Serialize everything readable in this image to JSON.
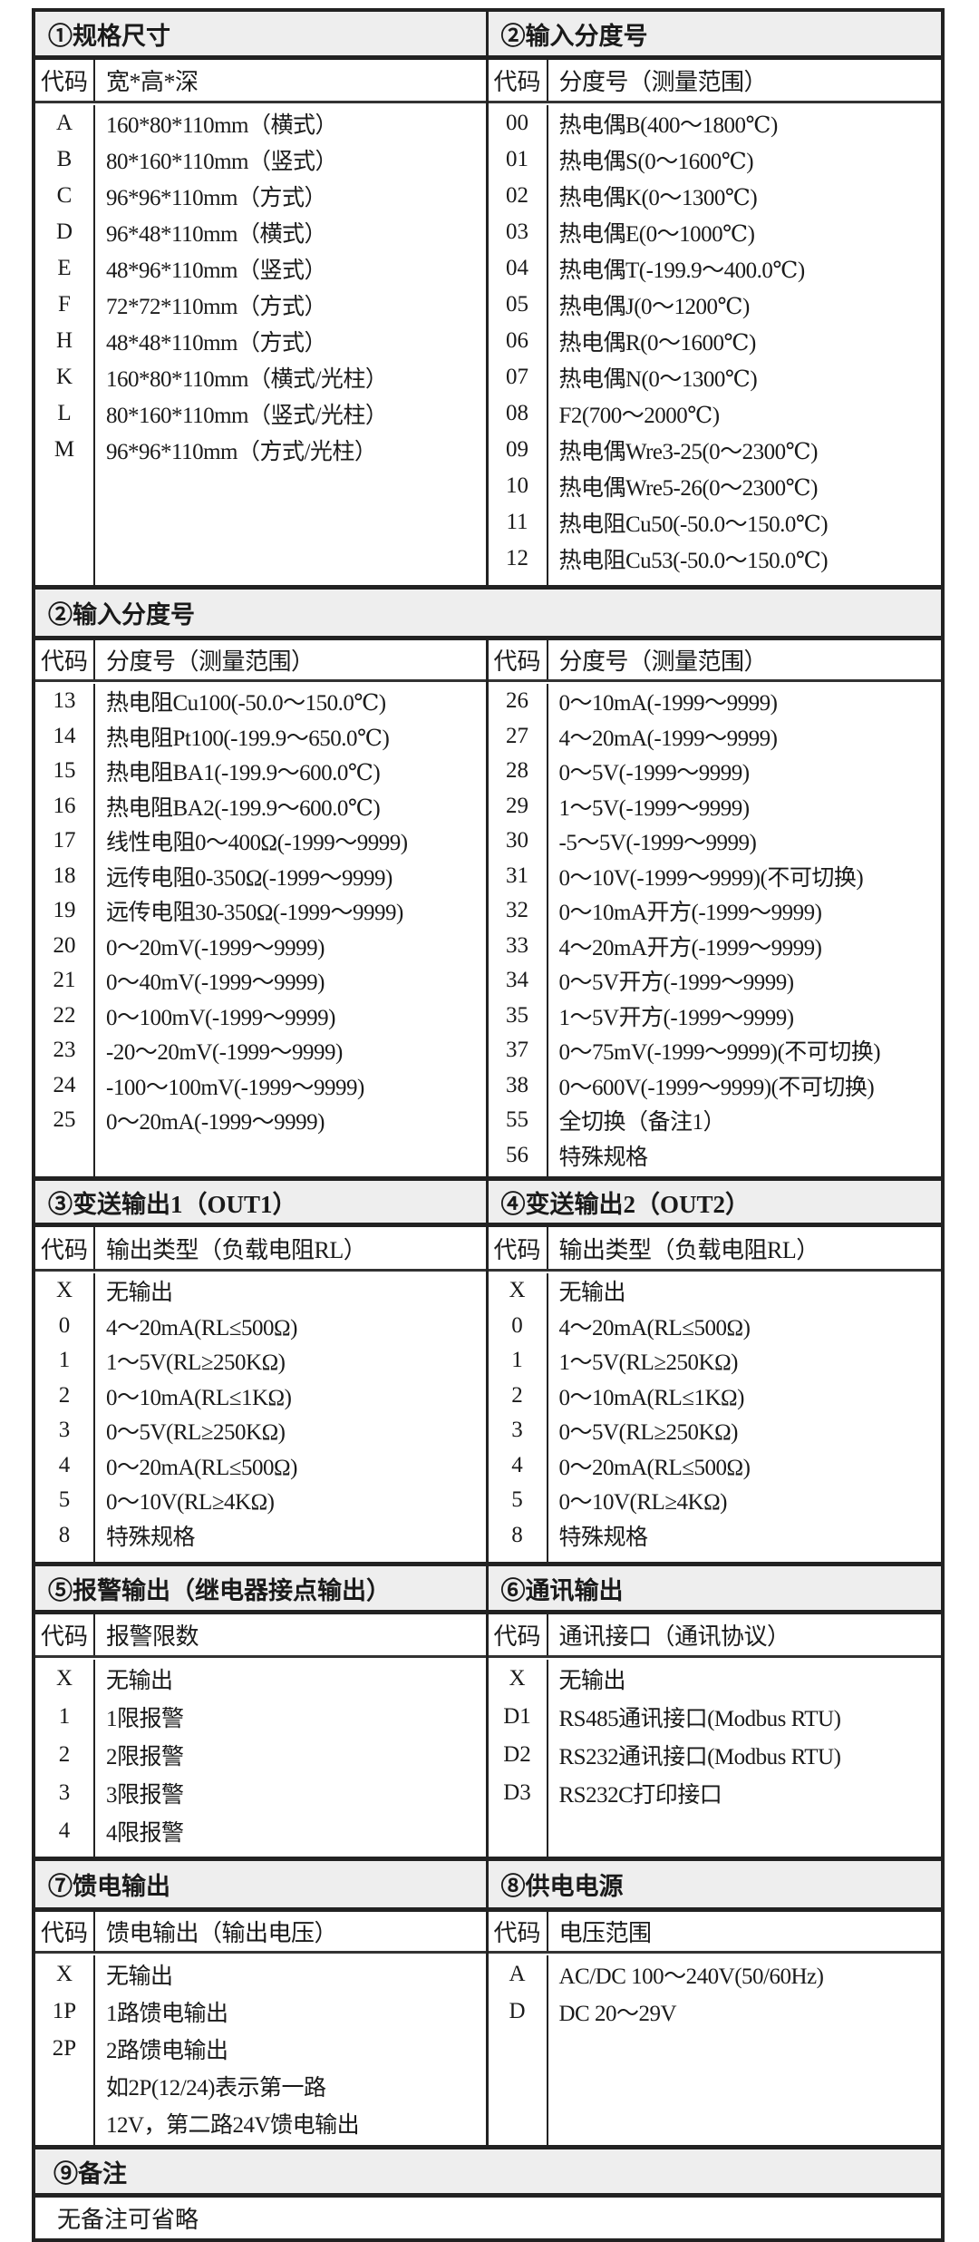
{
  "sections": [
    {
      "full_title": null,
      "header_h": 48,
      "colhdr_h": 45,
      "body_h": 529,
      "left": {
        "title": "①规格尺寸",
        "headers": [
          "代码",
          "宽*高*深"
        ],
        "rows": [
          [
            "A",
            "160*80*110mm（横式）"
          ],
          [
            "B",
            "80*160*110mm（竖式）"
          ],
          [
            "C",
            "96*96*110mm（方式）"
          ],
          [
            "D",
            "96*48*110mm（横式）"
          ],
          [
            "E",
            "48*96*110mm（竖式）"
          ],
          [
            "F",
            "72*72*110mm（方式）"
          ],
          [
            "H",
            "48*48*110mm（方式）"
          ],
          [
            "K",
            "160*80*110mm（横式/光柱）"
          ],
          [
            "L",
            "80*160*110mm（竖式/光柱）"
          ],
          [
            "M",
            "96*96*110mm（方式/光柱）"
          ]
        ]
      },
      "right": {
        "title": "②输入分度号",
        "headers": [
          "代码",
          "分度号（测量范围）"
        ],
        "rows": [
          [
            "00",
            "热电偶B(400～1800℃)"
          ],
          [
            "01",
            "热电偶S(0～1600℃)"
          ],
          [
            "02",
            "热电偶K(0～1300℃)"
          ],
          [
            "03",
            "热电偶E(0～1000℃)"
          ],
          [
            "04",
            "热电偶T(-199.9～400.0℃)"
          ],
          [
            "05",
            "热电偶J(0～1200℃)"
          ],
          [
            "06",
            "热电偶R(0～1600℃)"
          ],
          [
            "07",
            "热电偶N(0～1300℃)"
          ],
          [
            "08",
            "F2(700～2000℃)"
          ],
          [
            "09",
            "热电偶Wre3-25(0～2300℃)"
          ],
          [
            "10",
            "热电偶Wre5-26(0～2300℃)"
          ],
          [
            "11",
            "热电阻Cu50(-50.0～150.0℃)"
          ],
          [
            "12",
            "热电阻Cu53(-50.0～150.0℃)"
          ]
        ]
      },
      "row_h": 40
    },
    {
      "full_title": "②输入分度号",
      "header_h": 51,
      "colhdr_h": 43,
      "body_h": 543,
      "left": {
        "headers": [
          "代码",
          "分度号（测量范围）"
        ],
        "rows": [
          [
            "13",
            "热电阻Cu100(-50.0～150.0℃)"
          ],
          [
            "14",
            "热电阻Pt100(-199.9～650.0℃)"
          ],
          [
            "15",
            "热电阻BA1(-199.9～600.0℃)"
          ],
          [
            "16",
            "热电阻BA2(-199.9～600.0℃)"
          ],
          [
            "17",
            "线性电阻0～400Ω(-1999～9999)"
          ],
          [
            "18",
            "远传电阻0-350Ω(-1999～9999)"
          ],
          [
            "19",
            "远传电阻30-350Ω(-1999～9999)"
          ],
          [
            "20",
            "0～20mV(-1999～9999)"
          ],
          [
            "21",
            "0～40mV(-1999～9999)"
          ],
          [
            "22",
            "0～100mV(-1999～9999)"
          ],
          [
            "23",
            "-20～20mV(-1999～9999)"
          ],
          [
            "24",
            "-100～100mV(-1999～9999)"
          ],
          [
            "25",
            "0～20mA(-1999～9999)"
          ]
        ]
      },
      "right": {
        "headers": [
          "代码",
          "分度号（测量范围）"
        ],
        "rows": [
          [
            "26",
            "0～10mA(-1999～9999)"
          ],
          [
            "27",
            "4～20mA(-1999～9999)"
          ],
          [
            "28",
            "0～5V(-1999～9999)"
          ],
          [
            "29",
            "1～5V(-1999～9999)"
          ],
          [
            "30",
            "-5～5V(-1999～9999)"
          ],
          [
            "31",
            "0～10V(-1999～9999)(不可切换)"
          ],
          [
            "32",
            "0～10mA开方(-1999～9999)"
          ],
          [
            "33",
            "4～20mA开方(-1999～9999)"
          ],
          [
            "34",
            "0～5V开方(-1999～9999)"
          ],
          [
            "35",
            "1～5V开方(-1999～9999)"
          ],
          [
            "37",
            "0～75mV(-1999～9999)(不可切换)"
          ],
          [
            "38",
            "0～600V(-1999～9999)(不可切换)"
          ],
          [
            "55",
            "全切换（备注1）"
          ],
          [
            "56",
            "特殊规格"
          ]
        ]
      },
      "row_h": 38.5
    },
    {
      "full_title": null,
      "header_h": 46,
      "colhdr_h": 46,
      "body_h": 318,
      "left": {
        "title": "③变送输出1（OUT1）",
        "headers": [
          "代码",
          "输出类型（负载电阻RL）"
        ],
        "rows": [
          [
            "X",
            "无输出"
          ],
          [
            "0",
            "4～20mA(RL≤500Ω)"
          ],
          [
            "1",
            "1～5V(RL≥250KΩ)"
          ],
          [
            "2",
            "0～10mA(RL≤1KΩ)"
          ],
          [
            "3",
            "0～5V(RL≥250KΩ)"
          ],
          [
            "4",
            "0～20mA(RL≤500Ω)"
          ],
          [
            "5",
            "0～10V(RL≥4KΩ)"
          ],
          [
            "8",
            "特殊规格"
          ]
        ]
      },
      "right": {
        "title": "④变送输出2（OUT2）",
        "headers": [
          "代码",
          "输出类型（负载电阻RL）"
        ],
        "rows": [
          [
            "X",
            "无输出"
          ],
          [
            "0",
            "4～20mA(RL≤500Ω)"
          ],
          [
            "1",
            "1～5V(RL≥250KΩ)"
          ],
          [
            "2",
            "0～10mA(RL≤1KΩ)"
          ],
          [
            "3",
            "0～5V(RL≥250KΩ)"
          ],
          [
            "4",
            "0～20mA(RL≤500Ω)"
          ],
          [
            "5",
            "0～10V(RL≥4KΩ)"
          ],
          [
            "8",
            "特殊规格"
          ]
        ]
      },
      "row_h": 38.5
    },
    {
      "full_title": null,
      "header_h": 48,
      "colhdr_h": 45,
      "body_h": 217,
      "left": {
        "title": "⑤报警输出（继电器接点输出）",
        "headers": [
          "代码",
          "报警限数"
        ],
        "rows": [
          [
            "X",
            "无输出"
          ],
          [
            "1",
            "1限报警"
          ],
          [
            "2",
            "2限报警"
          ],
          [
            "3",
            "3限报警"
          ],
          [
            "4",
            "4限报警"
          ]
        ]
      },
      "right": {
        "title": "⑥通讯输出",
        "headers": [
          "代码",
          "通讯接口（通讯协议）"
        ],
        "rows": [
          [
            "X",
            "无输出"
          ],
          [
            "D1",
            "RS485通讯接口(Modbus RTU)"
          ],
          [
            "D2",
            "RS232通讯接口(Modbus RTU)"
          ],
          [
            "D3",
            "RS232C打印接口"
          ]
        ]
      },
      "row_h": 42
    },
    {
      "full_title": null,
      "header_h": 51,
      "colhdr_h": 43,
      "body_h": 209,
      "left": {
        "title": "⑦馈电输出",
        "headers": [
          "代码",
          "馈电输出（输出电压）"
        ],
        "rows": [
          [
            "X",
            "无输出"
          ],
          [
            "1P",
            "1路馈电输出"
          ],
          [
            "2P",
            "2路馈电输出"
          ],
          [
            "",
            "如2P(12/24)表示第一路"
          ],
          [
            "",
            "12V，第二路24V馈电输出"
          ]
        ]
      },
      "right": {
        "title": "⑧供电电源",
        "headers": [
          "代码",
          "电压范围"
        ],
        "rows": [
          [
            "A",
            "AC/DC 100～240V(50/60Hz)"
          ],
          [
            "D",
            "DC 20～29V"
          ]
        ]
      },
      "row_h": 41
    }
  ],
  "notes": {
    "title": "⑨备注",
    "body": "无备注可省略"
  }
}
